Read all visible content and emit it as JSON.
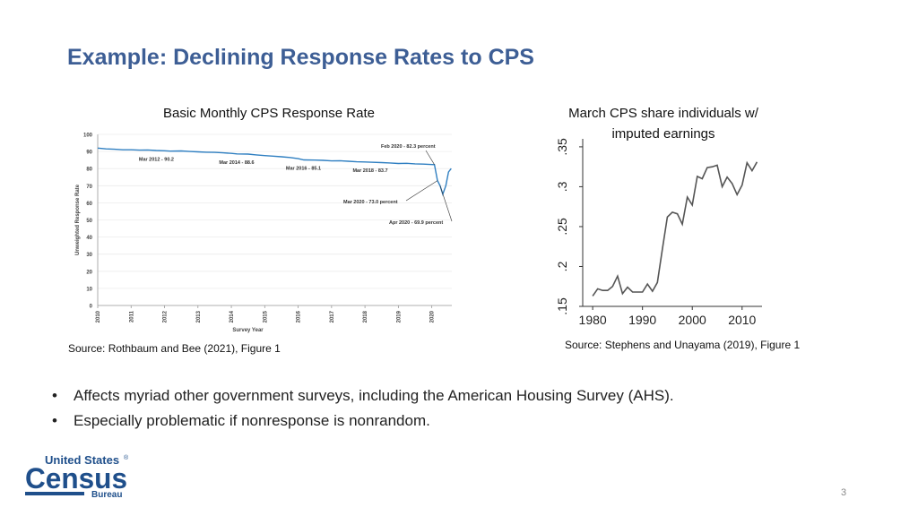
{
  "slide": {
    "title": "Example: Declining Response Rates to CPS",
    "page_number": "3"
  },
  "left_figure": {
    "caption": "Basic Monthly CPS Response Rate",
    "source": "Source: Rothbaum and Bee (2021), Figure 1"
  },
  "right_figure": {
    "caption_line1": "March CPS share individuals w/",
    "caption_line2": "imputed earnings",
    "source": "Source: Stephens and Unayama (2019), Figure 1"
  },
  "bullets": [
    "Affects myriad other government surveys, including the American Housing Survey (AHS).",
    "Especially problematic if nonresponse is nonrandom."
  ],
  "logo": {
    "line1": "United States",
    "registered": "®",
    "line2": "Census",
    "line3": "Bureau"
  },
  "colors": {
    "title": "#3d5e95",
    "line_left": "#2f7fc1",
    "line_right": "#555555",
    "logo": "#1f4f8b"
  },
  "chart_data": [
    {
      "type": "line",
      "title": "Basic Monthly CPS Response Rate",
      "xlabel": "Survey Year",
      "ylabel": "Unweighted Response Rate",
      "xlim": [
        2010,
        2020.6
      ],
      "ylim": [
        0,
        100
      ],
      "y_ticks": [
        "0",
        "10",
        "20",
        "30",
        "40",
        "50",
        "60",
        "70",
        "80",
        "90",
        "100"
      ],
      "x_ticks": [
        "2010",
        "2011",
        "2012",
        "2013",
        "2014",
        "2015",
        "2016",
        "2017",
        "2018",
        "2019",
        "2020"
      ],
      "series": [
        {
          "name": "Response Rate",
          "x": [
            2010.0,
            2010.25,
            2010.5,
            2010.75,
            2011.0,
            2011.25,
            2011.5,
            2011.75,
            2012.0,
            2012.17,
            2012.5,
            2012.75,
            2013.0,
            2013.25,
            2013.5,
            2013.75,
            2014.0,
            2014.17,
            2014.5,
            2014.75,
            2015.0,
            2015.25,
            2015.5,
            2015.75,
            2016.0,
            2016.17,
            2016.5,
            2016.75,
            2017.0,
            2017.25,
            2017.5,
            2017.75,
            2018.0,
            2018.17,
            2018.5,
            2018.75,
            2019.0,
            2019.25,
            2019.5,
            2019.75,
            2020.08,
            2020.17,
            2020.25,
            2020.33,
            2020.42,
            2020.5,
            2020.58
          ],
          "values": [
            92.0,
            91.5,
            91.3,
            91.0,
            91.0,
            90.8,
            90.9,
            90.6,
            90.4,
            90.2,
            90.3,
            90.0,
            89.8,
            89.6,
            89.5,
            89.2,
            88.9,
            88.6,
            88.5,
            88.0,
            87.6,
            87.3,
            86.9,
            86.5,
            85.8,
            85.1,
            85.0,
            84.8,
            84.5,
            84.6,
            84.3,
            84.0,
            83.9,
            83.7,
            83.5,
            83.3,
            83.0,
            83.1,
            82.8,
            82.6,
            82.3,
            73.0,
            69.9,
            65.0,
            70.0,
            78.0,
            80.0
          ]
        }
      ],
      "annotations": [
        {
          "text": "Mar 2012 - 90.2",
          "x": 2012.17,
          "y": 90.2
        },
        {
          "text": "Mar 2014 - 88.6",
          "x": 2014.17,
          "y": 88.6
        },
        {
          "text": "Mar 2016 - 85.1",
          "x": 2016.17,
          "y": 85.1
        },
        {
          "text": "Mar 2018 - 83.7",
          "x": 2018.17,
          "y": 83.7
        },
        {
          "text": "Feb 2020 - 82.3 percent",
          "x": 2020.08,
          "y": 82.3
        },
        {
          "text": "Mar 2020 - 73.0 percent",
          "x": 2020.17,
          "y": 73.0
        },
        {
          "text": "Apr 2020 - 69.9 percent",
          "x": 2020.25,
          "y": 69.9
        }
      ]
    },
    {
      "type": "line",
      "title": "March CPS share individuals w/ imputed earnings",
      "xlabel": "",
      "ylabel": "",
      "xlim": [
        1978,
        2014
      ],
      "ylim": [
        0.15,
        0.36
      ],
      "x_ticks": [
        "1980",
        "1990",
        "2000",
        "2010"
      ],
      "y_ticks": [
        ".15",
        ".2",
        ".25",
        ".3",
        ".35"
      ],
      "series": [
        {
          "name": "Share imputed",
          "x": [
            1980,
            1981,
            1982,
            1983,
            1984,
            1985,
            1986,
            1987,
            1988,
            1989,
            1990,
            1991,
            1992,
            1993,
            1994,
            1995,
            1996,
            1997,
            1998,
            1999,
            2000,
            2001,
            2002,
            2003,
            2004,
            2005,
            2006,
            2007,
            2008,
            2009,
            2010,
            2011,
            2012,
            2013
          ],
          "values": [
            0.163,
            0.172,
            0.17,
            0.17,
            0.175,
            0.188,
            0.166,
            0.174,
            0.168,
            0.168,
            0.168,
            0.178,
            0.169,
            0.18,
            0.222,
            0.262,
            0.268,
            0.266,
            0.253,
            0.287,
            0.277,
            0.313,
            0.31,
            0.324,
            0.325,
            0.327,
            0.3,
            0.312,
            0.304,
            0.29,
            0.302,
            0.33,
            0.32,
            0.331
          ]
        }
      ]
    }
  ]
}
